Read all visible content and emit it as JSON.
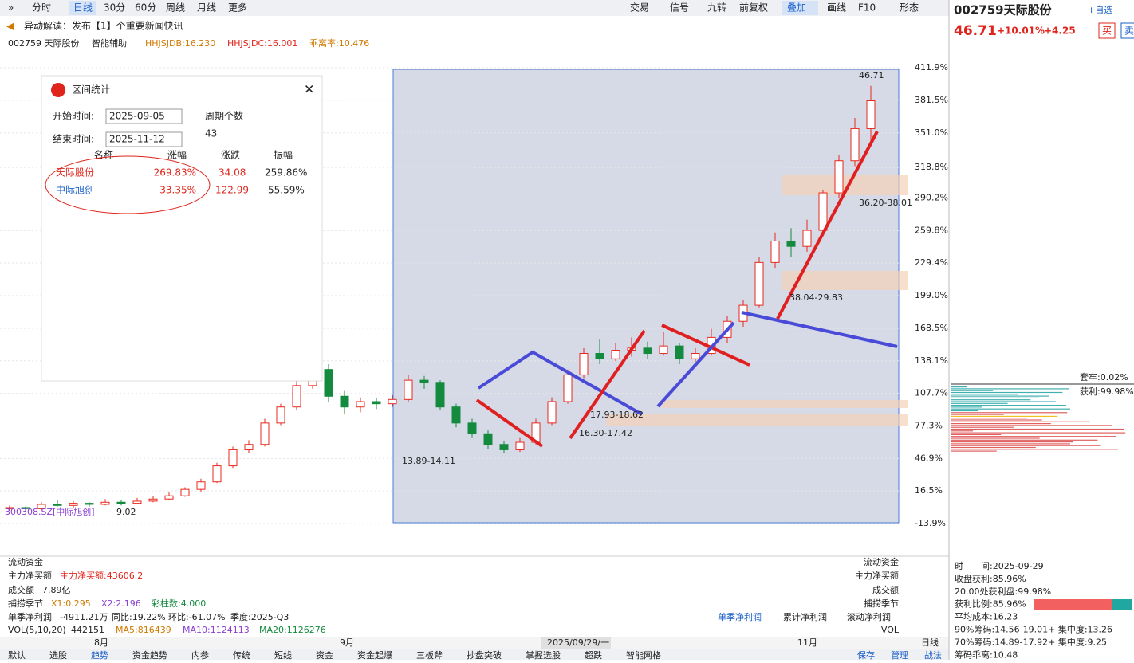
{
  "toolbar": {
    "left": [
      "分时",
      "日线",
      "30分",
      "60分",
      "周线",
      "月线",
      "更多"
    ],
    "right": [
      "交易",
      "信号",
      "九转",
      "前复权",
      "叠加",
      "画线",
      "F10",
      "形态"
    ]
  },
  "news": "异动解读：发布【1】个重要新闻快讯",
  "indicator_bar": {
    "code": "002759 天际股份",
    "assist": "智能辅助",
    "items": [
      "HHJSJDB:16.230",
      "HHJSJDC:16.001",
      "乖离率:10.476"
    ]
  },
  "chart": {
    "type": "candlestick",
    "up_color": "#e8281e",
    "down_color": "#138a3e",
    "ylim": [
      -13.9,
      411.9
    ],
    "yticks": [
      {
        "value": 411.9,
        "label": "411.9%"
      },
      {
        "value": 381.5,
        "label": "381.5%"
      },
      {
        "value": 351.0,
        "label": "351.0%"
      },
      {
        "value": 318.8,
        "label": "318.8%"
      },
      {
        "value": 290.2,
        "label": "290.2%"
      },
      {
        "value": 259.8,
        "label": "259.8%"
      },
      {
        "value": 229.4,
        "label": "229.4%"
      },
      {
        "value": 199.0,
        "label": "199.0%"
      },
      {
        "value": 168.5,
        "label": "168.5%"
      },
      {
        "value": 138.1,
        "label": "138.1%"
      },
      {
        "value": 107.7,
        "label": "107.7%"
      },
      {
        "value": 77.3,
        "label": "77.3%"
      },
      {
        "value": 46.9,
        "label": "46.9%"
      },
      {
        "value": 16.5,
        "label": "16.5%"
      },
      {
        "value": -13.9,
        "label": "-13.9%"
      }
    ],
    "x_labels": [
      "8月",
      "9月",
      "2025/09/29/一",
      "11月"
    ],
    "annotations": [
      "46.71",
      "36.20-38.01",
      "38.04-29.83",
      "17.93-18.62",
      "16.30-17.42",
      "13.89-14.11",
      "300308.SZ[中际旭创]",
      "9.02"
    ],
    "candles": [
      {
        "o": 0,
        "c": 1,
        "h": 3,
        "l": -2
      },
      {
        "o": 1,
        "c": 0,
        "h": 2,
        "l": -3
      },
      {
        "o": 0,
        "c": 4,
        "h": 6,
        "l": -1
      },
      {
        "o": 4,
        "c": 3,
        "h": 8,
        "l": 2
      },
      {
        "o": 3,
        "c": 5,
        "h": 7,
        "l": 1
      },
      {
        "o": 5,
        "c": 4,
        "h": 6,
        "l": 2
      },
      {
        "o": 4,
        "c": 6,
        "h": 9,
        "l": 3
      },
      {
        "o": 6,
        "c": 5,
        "h": 8,
        "l": 3
      },
      {
        "o": 5,
        "c": 7,
        "h": 10,
        "l": 4
      },
      {
        "o": 7,
        "c": 9,
        "h": 12,
        "l": 6
      },
      {
        "o": 9,
        "c": 12,
        "h": 15,
        "l": 8
      },
      {
        "o": 12,
        "c": 18,
        "h": 20,
        "l": 11
      },
      {
        "o": 18,
        "c": 25,
        "h": 28,
        "l": 16
      },
      {
        "o": 25,
        "c": 40,
        "h": 43,
        "l": 24
      },
      {
        "o": 40,
        "c": 55,
        "h": 58,
        "l": 38
      },
      {
        "o": 55,
        "c": 60,
        "h": 64,
        "l": 52
      },
      {
        "o": 60,
        "c": 80,
        "h": 84,
        "l": 58
      },
      {
        "o": 80,
        "c": 95,
        "h": 98,
        "l": 78
      },
      {
        "o": 95,
        "c": 115,
        "h": 120,
        "l": 92
      },
      {
        "o": 115,
        "c": 130,
        "h": 140,
        "l": 112
      },
      {
        "o": 130,
        "c": 105,
        "h": 135,
        "l": 100
      },
      {
        "o": 105,
        "c": 95,
        "h": 110,
        "l": 88
      },
      {
        "o": 95,
        "c": 100,
        "h": 104,
        "l": 90
      },
      {
        "o": 100,
        "c": 98,
        "h": 103,
        "l": 93
      },
      {
        "o": 98,
        "c": 102,
        "h": 106,
        "l": 95
      },
      {
        "o": 102,
        "c": 120,
        "h": 125,
        "l": 100
      },
      {
        "o": 120,
        "c": 118,
        "h": 124,
        "l": 112
      },
      {
        "o": 118,
        "c": 95,
        "h": 120,
        "l": 92
      },
      {
        "o": 95,
        "c": 80,
        "h": 98,
        "l": 76
      },
      {
        "o": 80,
        "c": 70,
        "h": 84,
        "l": 66
      },
      {
        "o": 70,
        "c": 60,
        "h": 73,
        "l": 56
      },
      {
        "o": 60,
        "c": 55,
        "h": 63,
        "l": 52
      },
      {
        "o": 55,
        "c": 62,
        "h": 66,
        "l": 53
      },
      {
        "o": 62,
        "c": 80,
        "h": 84,
        "l": 60
      },
      {
        "o": 80,
        "c": 100,
        "h": 104,
        "l": 78
      },
      {
        "o": 100,
        "c": 125,
        "h": 130,
        "l": 98
      },
      {
        "o": 125,
        "c": 145,
        "h": 150,
        "l": 122
      },
      {
        "o": 145,
        "c": 140,
        "h": 158,
        "l": 135
      },
      {
        "o": 140,
        "c": 148,
        "h": 155,
        "l": 138
      },
      {
        "o": 148,
        "c": 150,
        "h": 160,
        "l": 142
      },
      {
        "o": 150,
        "c": 145,
        "h": 156,
        "l": 140
      },
      {
        "o": 145,
        "c": 152,
        "h": 165,
        "l": 143
      },
      {
        "o": 152,
        "c": 140,
        "h": 155,
        "l": 135
      },
      {
        "o": 140,
        "c": 145,
        "h": 150,
        "l": 137
      },
      {
        "o": 145,
        "c": 160,
        "h": 168,
        "l": 143
      },
      {
        "o": 160,
        "c": 175,
        "h": 180,
        "l": 155
      },
      {
        "o": 175,
        "c": 190,
        "h": 195,
        "l": 170
      },
      {
        "o": 190,
        "c": 230,
        "h": 235,
        "l": 188
      },
      {
        "o": 230,
        "c": 250,
        "h": 258,
        "l": 225
      },
      {
        "o": 250,
        "c": 245,
        "h": 262,
        "l": 235
      },
      {
        "o": 245,
        "c": 260,
        "h": 270,
        "l": 240
      },
      {
        "o": 260,
        "c": 295,
        "h": 298,
        "l": 258
      },
      {
        "o": 295,
        "c": 325,
        "h": 330,
        "l": 290
      },
      {
        "o": 325,
        "c": 355,
        "h": 365,
        "l": 320
      },
      {
        "o": 355,
        "c": 381,
        "h": 395,
        "l": 340
      }
    ]
  },
  "stats_panel": {
    "title": "区间统计",
    "start_label": "开始时间:",
    "start": "2025-09-05",
    "end_label": "结束时间:",
    "end": "2025-11-12",
    "count_label": "周期个数",
    "count": "43",
    "headers": [
      "名称",
      "涨幅",
      "涨跌",
      "振幅"
    ],
    "rows": [
      [
        "天际股份",
        "269.83%",
        "34.08",
        "259.86%"
      ],
      [
        "中际旭创",
        "33.35%",
        "122.99",
        "55.59%"
      ]
    ]
  },
  "sub_panels": {
    "fund": "流动资金",
    "main_net_label": "主力净买额",
    "main_net": "主力净买额:43606.2",
    "turnover_label": "成交额",
    "turnover": "7.89亿",
    "season_label": "捕捞季节",
    "season": [
      "X1:0.295",
      "X2:2.196",
      "彩柱数:4.000"
    ],
    "profit_label": "单季净利润",
    "profit": [
      "-4911.21万",
      "同比:19.22%",
      "环比:-61.07%",
      "季度:2025-Q3"
    ],
    "profit_tabs": [
      "单季净利润",
      "累计净利润",
      "滚动净利润"
    ],
    "vol_label": "VOL(5,10,20)",
    "vol": [
      "442151",
      "MA5:816439",
      "MA10:1124113",
      "MA20:1126276"
    ],
    "vol_right": "VOL"
  },
  "bottom_tabs": [
    "默认",
    "选股",
    "趋势",
    "资金趋势",
    "内参",
    "传统",
    "短线",
    "资金",
    "资金起爆",
    "三板斧",
    "抄盘突破",
    "掌握选股",
    "超跌",
    "智能网格"
  ],
  "bottom_right": [
    "保存",
    "管理",
    "战法"
  ],
  "period": "日线",
  "side": {
    "title": "002759天际股份",
    "price": "46.71",
    "pct": "+10.01%",
    "chg": "+4.25",
    "buy": "买",
    "sell": "卖",
    "watch": "+自选",
    "trapped": "套牢:0.02%",
    "profit": "获利:99.98%",
    "info": [
      "时　　间:2025-09-29",
      "收盘获利:85.96%",
      "20.00处获利盘:99.98%",
      "获利比例:85.96%",
      "平均成本:16.23",
      "90%筹码:14.56-19.01+ 集中度:13.26",
      "70%筹码:14.89-17.92+ 集中度:9.25",
      "筹码乖离:10.48"
    ]
  }
}
